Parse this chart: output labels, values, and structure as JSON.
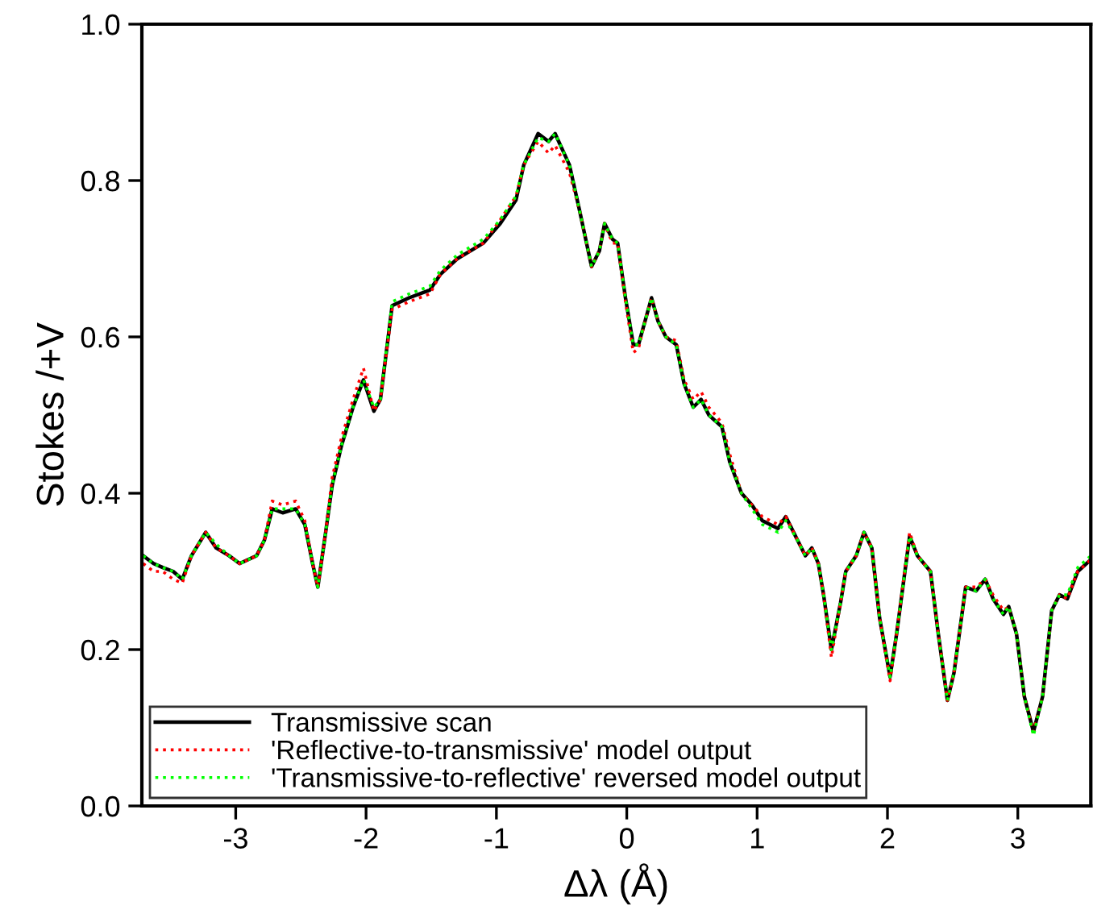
{
  "chart_data": {
    "type": "line",
    "xlabel": "Δλ (Å)",
    "ylabel": "Stokes /+V",
    "x": [
      -3.71,
      -3.63,
      -3.56,
      -3.48,
      -3.41,
      -3.34,
      -3.23,
      -3.15,
      -3.05,
      -2.97,
      -2.84,
      -2.78,
      -2.72,
      -2.64,
      -2.54,
      -2.47,
      -2.41,
      -2.37,
      -2.31,
      -2.26,
      -2.19,
      -2.1,
      -2.02,
      -1.94,
      -1.89,
      -1.8,
      -1.67,
      -1.51,
      -1.43,
      -1.3,
      -1.1,
      -0.97,
      -0.85,
      -0.79,
      -0.68,
      -0.6,
      -0.55,
      -0.44,
      -0.36,
      -0.27,
      -0.21,
      -0.17,
      -0.11,
      -0.07,
      -0.01,
      0.05,
      0.09,
      0.14,
      0.19,
      0.24,
      0.3,
      0.38,
      0.44,
      0.51,
      0.57,
      0.63,
      0.73,
      0.79,
      0.88,
      0.96,
      1.04,
      1.16,
      1.22,
      1.31,
      1.37,
      1.42,
      1.47,
      1.51,
      1.57,
      1.64,
      1.68,
      1.76,
      1.82,
      1.88,
      1.94,
      2.02,
      2.07,
      2.17,
      2.23,
      2.33,
      2.39,
      2.46,
      2.51,
      2.6,
      2.68,
      2.75,
      2.81,
      2.89,
      2.93,
      2.99,
      3.05,
      3.12,
      3.19,
      3.26,
      3.32,
      3.38,
      3.46,
      3.56
    ],
    "series": [
      {
        "name": "Transmissive scan",
        "color": "#000000",
        "line_style": "solid",
        "values": [
          0.32,
          0.31,
          0.305,
          0.3,
          0.29,
          0.32,
          0.35,
          0.33,
          0.32,
          0.31,
          0.32,
          0.34,
          0.38,
          0.375,
          0.38,
          0.36,
          0.31,
          0.28,
          0.35,
          0.41,
          0.46,
          0.51,
          0.545,
          0.505,
          0.52,
          0.64,
          0.65,
          0.66,
          0.68,
          0.7,
          0.72,
          0.745,
          0.775,
          0.82,
          0.86,
          0.85,
          0.86,
          0.82,
          0.76,
          0.69,
          0.71,
          0.745,
          0.725,
          0.72,
          0.65,
          0.59,
          0.59,
          0.62,
          0.65,
          0.62,
          0.6,
          0.59,
          0.54,
          0.51,
          0.52,
          0.5,
          0.485,
          0.44,
          0.4,
          0.385,
          0.365,
          0.355,
          0.37,
          0.34,
          0.32,
          0.33,
          0.31,
          0.27,
          0.2,
          0.26,
          0.3,
          0.32,
          0.35,
          0.33,
          0.24,
          0.165,
          0.22,
          0.345,
          0.32,
          0.3,
          0.22,
          0.135,
          0.17,
          0.28,
          0.275,
          0.29,
          0.265,
          0.245,
          0.255,
          0.22,
          0.14,
          0.095,
          0.14,
          0.25,
          0.27,
          0.265,
          0.3,
          0.315
        ]
      },
      {
        "name": "'Reflective-to-transmissive' model output",
        "color": "#ff0000",
        "line_style": "dotted",
        "values": [
          0.31,
          0.3,
          0.3,
          0.29,
          0.285,
          0.32,
          0.35,
          0.33,
          0.32,
          0.31,
          0.32,
          0.34,
          0.39,
          0.385,
          0.39,
          0.365,
          0.31,
          0.28,
          0.35,
          0.42,
          0.47,
          0.52,
          0.56,
          0.505,
          0.52,
          0.635,
          0.645,
          0.655,
          0.68,
          0.7,
          0.72,
          0.75,
          0.78,
          0.82,
          0.85,
          0.835,
          0.845,
          0.81,
          0.76,
          0.69,
          0.71,
          0.745,
          0.72,
          0.72,
          0.645,
          0.58,
          0.585,
          0.62,
          0.65,
          0.62,
          0.6,
          0.595,
          0.545,
          0.52,
          0.53,
          0.51,
          0.49,
          0.45,
          0.4,
          0.385,
          0.37,
          0.36,
          0.37,
          0.34,
          0.32,
          0.33,
          0.31,
          0.27,
          0.19,
          0.26,
          0.3,
          0.32,
          0.35,
          0.33,
          0.24,
          0.16,
          0.22,
          0.35,
          0.32,
          0.3,
          0.22,
          0.135,
          0.17,
          0.28,
          0.28,
          0.29,
          0.27,
          0.25,
          0.255,
          0.22,
          0.14,
          0.095,
          0.14,
          0.25,
          0.27,
          0.265,
          0.3,
          0.315
        ]
      },
      {
        "name": "'Transmissive-to-reflective' reversed model output",
        "color": "#00ff00",
        "line_style": "dotted",
        "values": [
          0.32,
          0.31,
          0.305,
          0.3,
          0.29,
          0.32,
          0.35,
          0.335,
          0.32,
          0.31,
          0.32,
          0.34,
          0.38,
          0.38,
          0.38,
          0.36,
          0.31,
          0.28,
          0.35,
          0.41,
          0.46,
          0.51,
          0.545,
          0.51,
          0.52,
          0.645,
          0.655,
          0.665,
          0.685,
          0.705,
          0.725,
          0.75,
          0.78,
          0.82,
          0.855,
          0.85,
          0.86,
          0.82,
          0.76,
          0.69,
          0.71,
          0.745,
          0.725,
          0.72,
          0.65,
          0.59,
          0.59,
          0.62,
          0.65,
          0.62,
          0.6,
          0.59,
          0.54,
          0.51,
          0.52,
          0.5,
          0.485,
          0.44,
          0.4,
          0.38,
          0.36,
          0.35,
          0.365,
          0.34,
          0.32,
          0.33,
          0.31,
          0.27,
          0.2,
          0.26,
          0.3,
          0.32,
          0.35,
          0.33,
          0.24,
          0.165,
          0.22,
          0.345,
          0.32,
          0.3,
          0.22,
          0.135,
          0.17,
          0.28,
          0.275,
          0.29,
          0.265,
          0.245,
          0.255,
          0.22,
          0.14,
          0.09,
          0.14,
          0.25,
          0.27,
          0.27,
          0.305,
          0.32
        ]
      }
    ],
    "xlim": [
      -3.72,
      3.56
    ],
    "xticks": [
      -3,
      -2,
      -1,
      0,
      1,
      2,
      3
    ],
    "ylim": [
      0,
      1.0
    ],
    "yticks": [
      {
        "value": 0,
        "label": "0.0"
      },
      {
        "value": 0.2,
        "label": "0.2"
      },
      {
        "value": 0.4,
        "label": "0.4"
      },
      {
        "value": 0.6,
        "label": "0.6"
      },
      {
        "value": 0.8,
        "label": "0.8"
      },
      {
        "value": 1.0,
        "label": "1.0"
      }
    ],
    "grid": false,
    "legend": "bottom left"
  }
}
